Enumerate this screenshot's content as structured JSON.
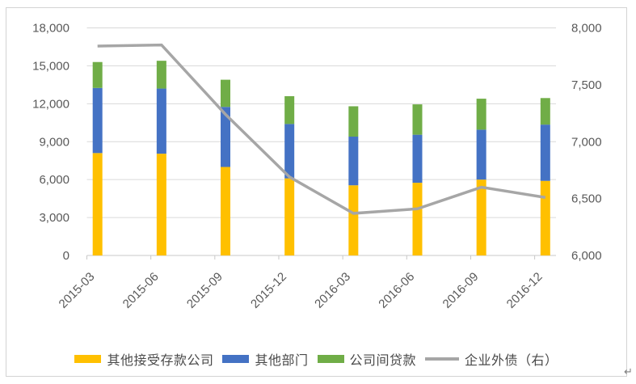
{
  "page": {
    "return_mark": "↵"
  },
  "axes": {
    "left_tick_labels": [
      "18,000",
      "15,000",
      "12,000",
      "9,000",
      "6,000",
      "3,000",
      "0"
    ],
    "right_tick_labels": [
      "8,000",
      "7,500",
      "7,000",
      "6,500",
      "6,000"
    ],
    "x_tick_labels": [
      "2015-03",
      "2015-06",
      "2015-09",
      "2015-12",
      "2016-03",
      "2016-06",
      "2016-09",
      "2016-12"
    ]
  },
  "legend": [
    {
      "label": "其他接受存款公司",
      "swatch": "bar",
      "color": "#FFC000"
    },
    {
      "label": "其他部门",
      "swatch": "bar",
      "color": "#4472C4"
    },
    {
      "label": "公司间贷款",
      "swatch": "bar",
      "color": "#70AD47"
    },
    {
      "label": "企业外债（右）",
      "swatch": "line",
      "color": "#A6A6A6"
    }
  ],
  "colors": {
    "gridline": "#D9D9D9",
    "axis_line": "#C8C8C8",
    "axis_text": "#595959",
    "frame_border": "#D3D3D3"
  },
  "chart_data": {
    "type": "bar",
    "subtype": "stacked-column-with-line",
    "categories": [
      "2015-03",
      "2015-06",
      "2015-09",
      "2015-12",
      "2016-03",
      "2016-06",
      "2016-09",
      "2016-12"
    ],
    "series": [
      {
        "name": "其他接受存款公司",
        "type": "bar",
        "stack": true,
        "axis": "left",
        "color": "#FFC000",
        "values": [
          8100,
          8050,
          7000,
          6100,
          5550,
          5750,
          6000,
          5900
        ]
      },
      {
        "name": "其他部门",
        "type": "bar",
        "stack": true,
        "axis": "left",
        "color": "#4472C4",
        "values": [
          5150,
          5150,
          4750,
          4300,
          3850,
          3800,
          3950,
          4450
        ]
      },
      {
        "name": "公司间贷款",
        "type": "bar",
        "stack": true,
        "axis": "left",
        "color": "#70AD47",
        "values": [
          2050,
          2200,
          2150,
          2200,
          2400,
          2400,
          2450,
          2100
        ]
      },
      {
        "name": "企业外债（右）",
        "type": "line",
        "stack": false,
        "axis": "right",
        "color": "#A6A6A6",
        "values": [
          7840,
          7850,
          7240,
          6690,
          6370,
          6410,
          6600,
          6510
        ]
      }
    ],
    "stacked_totals": [
      15300,
      15400,
      13900,
      12600,
      11800,
      11950,
      12400,
      12450
    ],
    "left_axis": {
      "min": 0,
      "max": 18000,
      "step": 3000
    },
    "right_axis": {
      "min": 6000,
      "max": 8000,
      "step": 500
    },
    "grid": true,
    "legend_position": "bottom",
    "x_label_rotation": -45
  }
}
